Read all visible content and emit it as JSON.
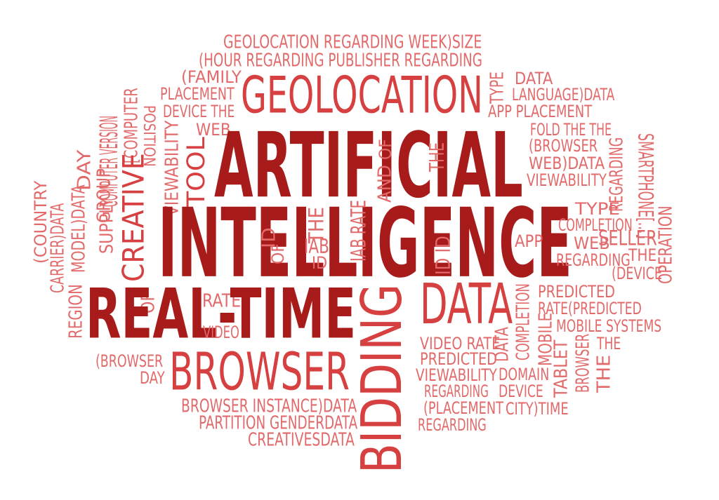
{
  "colors": {
    "background": "#ffffff",
    "primary": "#a81b1b",
    "secondary": "#d64040",
    "light": "#e26a6a"
  },
  "words": [
    {
      "text": "GEOLOCATION  REGARDING  WEEK)SIZE",
      "tone": "light"
    },
    {
      "text": "(HOUR  REGARDING  PUBLISHER REGARDING",
      "tone": "light"
    },
    {
      "text": "(FAMILY",
      "tone": "light"
    },
    {
      "text": "PLACEMENT",
      "tone": "light"
    },
    {
      "text": "DEVICE THE",
      "tone": "light"
    },
    {
      "text": "GEOLOCATION",
      "tone": "secondary"
    },
    {
      "text": "TYPE",
      "tone": "light"
    },
    {
      "text": "DATA",
      "tone": "light"
    },
    {
      "text": "LANGUAGE)DATA",
      "tone": "light"
    },
    {
      "text": "APP PLACEMENT",
      "tone": "light"
    },
    {
      "text": "[COMPUTER",
      "tone": "light"
    },
    {
      "text": "COMPUTER VERSION",
      "tone": "light"
    },
    {
      "text": "POSITION",
      "tone": "light"
    },
    {
      "text": "WEB",
      "tone": "light"
    },
    {
      "text": "VIEWABILITY",
      "tone": "light"
    },
    {
      "text": "TOOL",
      "tone": "secondary"
    },
    {
      "text": "ARTIFICIAL",
      "tone": "primary"
    },
    {
      "text": "OF",
      "tone": "light"
    },
    {
      "text": "THE",
      "tone": "light"
    },
    {
      "text": "AND",
      "tone": "light"
    },
    {
      "text": "FOLD THE THE",
      "tone": "light"
    },
    {
      "text": "(BROWSER",
      "tone": "light"
    },
    {
      "text": "WEB)DATA",
      "tone": "light"
    },
    {
      "text": "VIEWABILITY",
      "tone": "light"
    },
    {
      "text": "REGARDING",
      "tone": "light"
    },
    {
      "text": "SMARTPHONE[...]",
      "tone": "light"
    },
    {
      "text": "DAY",
      "tone": "light"
    },
    {
      "text": "GROUP",
      "tone": "light"
    },
    {
      "text": "CREATIVE",
      "tone": "secondary"
    },
    {
      "text": "(COUNTRY",
      "tone": "light"
    },
    {
      "text": "MODEL)DATA",
      "tone": "light"
    },
    {
      "text": "SUPPLY",
      "tone": "light"
    },
    {
      "text": "CARRIER)DATA",
      "tone": "light"
    },
    {
      "text": "INTELLIGENCE",
      "tone": "primary"
    },
    {
      "text": "ID",
      "tone": "light"
    },
    {
      "text": "THE",
      "tone": "light"
    },
    {
      "text": "IAB",
      "tone": "light"
    },
    {
      "text": "IAB RATE",
      "tone": "light"
    },
    {
      "text": "ID",
      "tone": "light"
    },
    {
      "text": "ID ID",
      "tone": "light"
    },
    {
      "text": "OF",
      "tone": "light"
    },
    {
      "text": "APP",
      "tone": "light"
    },
    {
      "text": "TYPE",
      "tone": "light"
    },
    {
      "text": "COMPLETION",
      "tone": "light"
    },
    {
      "text": "WEB",
      "tone": "light"
    },
    {
      "text": "SELLER",
      "tone": "light"
    },
    {
      "text": "REGARDING",
      "tone": "light"
    },
    {
      "text": "THE",
      "tone": "light"
    },
    {
      "text": "(DEVICE",
      "tone": "light"
    },
    {
      "text": "OPERATION",
      "tone": "light"
    },
    {
      "text": "REGION",
      "tone": "light"
    },
    {
      "text": "OF",
      "tone": "light"
    },
    {
      "text": "RATE)",
      "tone": "light"
    },
    {
      "text": "REAL-TIME",
      "tone": "primary"
    },
    {
      "text": "VIDEO",
      "tone": "light"
    },
    {
      "text": "BIDDING",
      "tone": "secondary"
    },
    {
      "text": "DATA",
      "tone": "secondary"
    },
    {
      "text": "COMPLETION",
      "tone": "light"
    },
    {
      "text": "PREDICTED",
      "tone": "light"
    },
    {
      "text": "RATE(PREDICTED",
      "tone": "light"
    },
    {
      "text": "MOBILE",
      "tone": "light"
    },
    {
      "text": "MOBILE SYSTEMS",
      "tone": "light"
    },
    {
      "text": "THE",
      "tone": "light"
    },
    {
      "text": "VIDEO RATE",
      "tone": "light"
    },
    {
      "text": "PREDICTED",
      "tone": "light"
    },
    {
      "text": "VIEWABILITY",
      "tone": "light"
    },
    {
      "text": "DOMAIN",
      "tone": "light"
    },
    {
      "text": "TABLET",
      "tone": "light"
    },
    {
      "text": "BROWSER",
      "tone": "light"
    },
    {
      "text": "THE",
      "tone": "light"
    },
    {
      "text": "DATA",
      "tone": "light"
    },
    {
      "text": "REGARDING",
      "tone": "light"
    },
    {
      "text": "DEVICE",
      "tone": "light"
    },
    {
      "text": "(PLACEMENT",
      "tone": "light"
    },
    {
      "text": "CITY)TIME",
      "tone": "light"
    },
    {
      "text": "REGARDING",
      "tone": "light"
    },
    {
      "text": "(BROWSER",
      "tone": "light"
    },
    {
      "text": "DAY",
      "tone": "light"
    },
    {
      "text": "BROWSER",
      "tone": "secondary"
    },
    {
      "text": "BROWSER  INSTANCE)DATA",
      "tone": "light"
    },
    {
      "text": "PARTITION GENDERDATA",
      "tone": "light"
    },
    {
      "text": "CREATIVESDATA",
      "tone": "light"
    }
  ]
}
